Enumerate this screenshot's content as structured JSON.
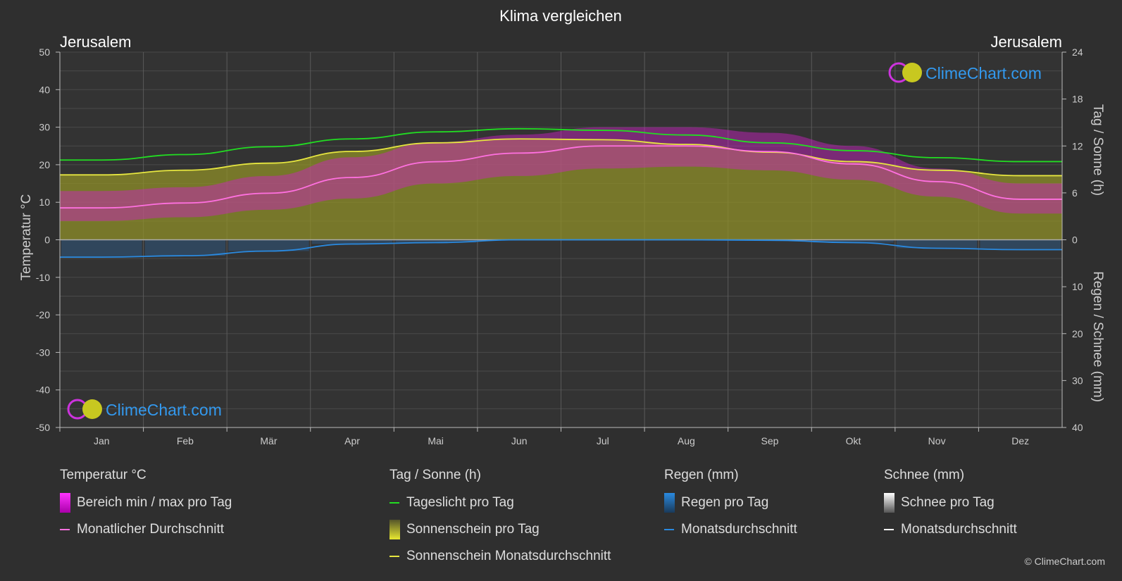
{
  "title": "Klima vergleichen",
  "location_left": "Jerusalem",
  "location_right": "Jerusalem",
  "brand": "ClimeChart.com",
  "copyright": "© ClimeChart.com",
  "colors": {
    "temp_range": "#d020c8",
    "temp_avg": "#ff70e0",
    "daylight": "#22dd22",
    "sunshine_area": "#8f8f28",
    "sunshine_avg": "#e6e640",
    "rain": "#2a6aa8",
    "rain_avg": "#2a8ae0",
    "snow_avg": "#ffffff"
  },
  "legend": {
    "temp": {
      "title": "Temperatur °C",
      "range": "Bereich min / max pro Tag",
      "avg": "Monatlicher Durchschnitt"
    },
    "sun": {
      "title": "Tag / Sonne (h)",
      "daylight": "Tageslicht pro Tag",
      "sunshine": "Sonnenschein pro Tag",
      "sunshine_avg": "Sonnenschein Monatsdurchschnitt"
    },
    "rain": {
      "title": "Regen (mm)",
      "rain": "Regen pro Tag",
      "avg": "Monatsdurchschnitt"
    },
    "snow": {
      "title": "Schnee (mm)",
      "snow": "Schnee pro Tag",
      "avg": "Monatsdurchschnitt"
    }
  },
  "chart_data": {
    "type": "line",
    "title": "Klima vergleichen",
    "categories": [
      "Jan",
      "Feb",
      "Mär",
      "Apr",
      "Mai",
      "Jun",
      "Jul",
      "Aug",
      "Sep",
      "Okt",
      "Nov",
      "Dez"
    ],
    "y_left": {
      "label": "Temperatur °C",
      "range": [
        -50,
        50
      ],
      "ticks": [
        50,
        40,
        30,
        20,
        10,
        0,
        -10,
        -20,
        -30,
        -40,
        -50
      ]
    },
    "y_right_top": {
      "label": "Tag / Sonne (h)",
      "range": [
        0,
        24
      ],
      "ticks": [
        24,
        18,
        12,
        6,
        0
      ]
    },
    "y_right_bottom": {
      "label": "Regen / Schnee (mm)",
      "range": [
        0,
        40
      ],
      "ticks": [
        0,
        10,
        20,
        30,
        40
      ]
    },
    "grid": true,
    "series": [
      {
        "name": "Monatlicher Durchschnitt",
        "unit": "°C",
        "values": [
          8.5,
          9.8,
          12.4,
          16.6,
          20.8,
          23.1,
          25.0,
          25.0,
          23.5,
          20.2,
          15.5,
          10.8
        ]
      },
      {
        "name": "Bereich min / max pro Tag (max)",
        "unit": "°C",
        "values": [
          13,
          14,
          17,
          22,
          26,
          28,
          30,
          30,
          28.5,
          25,
          19,
          15
        ]
      },
      {
        "name": "Bereich min / max pro Tag (min)",
        "unit": "°C",
        "values": [
          5,
          6,
          8,
          11,
          15,
          17,
          19,
          19.5,
          18.5,
          16,
          11.5,
          7
        ]
      },
      {
        "name": "Tageslicht pro Tag",
        "unit": "h",
        "values": [
          10.2,
          10.9,
          11.9,
          12.9,
          13.8,
          14.2,
          14.0,
          13.4,
          12.4,
          11.4,
          10.5,
          10.0
        ]
      },
      {
        "name": "Sonnenschein Monatsdurchschnitt",
        "unit": "h",
        "values": [
          8.3,
          8.9,
          9.8,
          11.3,
          12.4,
          12.9,
          12.8,
          12.2,
          11.2,
          10.0,
          8.9,
          8.2
        ]
      },
      {
        "name": "Regen Monatsdurchschnitt",
        "unit": "mm",
        "values": [
          3.7,
          3.4,
          2.4,
          0.9,
          0.6,
          0.0,
          0.0,
          0.0,
          0.1,
          0.6,
          1.8,
          2.1
        ]
      },
      {
        "name": "Schnee Monatsdurchschnitt",
        "unit": "mm",
        "values": [
          0,
          0,
          0,
          0,
          0,
          0,
          0,
          0,
          0,
          0,
          0,
          0
        ]
      }
    ]
  }
}
